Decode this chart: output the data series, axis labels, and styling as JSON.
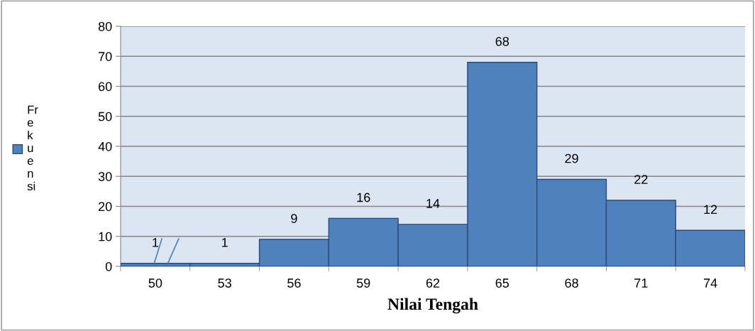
{
  "chart_data": {
    "type": "bar",
    "xlabel": "Nilai Tengah",
    "categories": [
      "50",
      "53",
      "56",
      "59",
      "62",
      "65",
      "68",
      "71",
      "74"
    ],
    "series": [
      {
        "name": "Frekuensi",
        "color": "#4f81bd",
        "values": [
          1,
          1,
          9,
          16,
          14,
          68,
          29,
          22,
          12
        ]
      }
    ],
    "ylim": [
      0,
      80
    ],
    "yticks": [
      0,
      10,
      20,
      30,
      40,
      50,
      60,
      70,
      80
    ],
    "grid": "y",
    "legend": "left",
    "data_labels": true
  }
}
